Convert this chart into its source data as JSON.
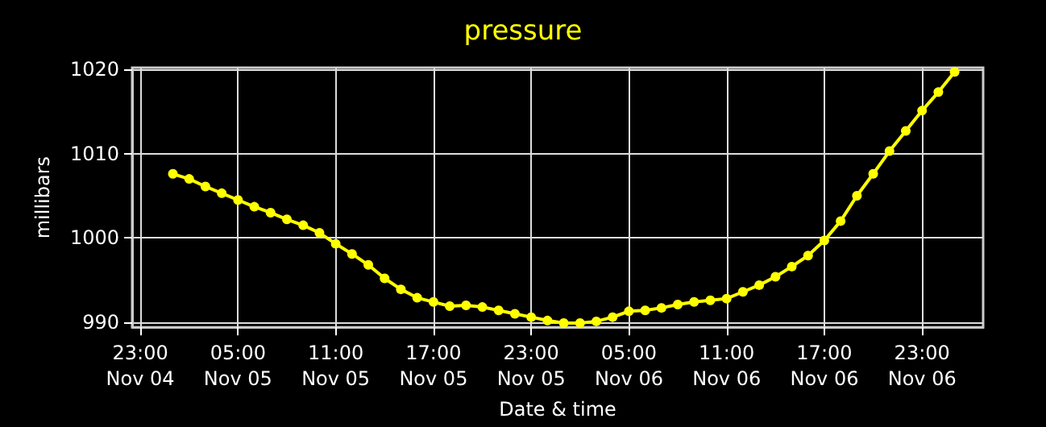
{
  "chart_data": {
    "type": "line",
    "title": "pressure",
    "xlabel": "Date & time",
    "ylabel": "millibars",
    "x": [
      "--11-05T01:00",
      "--11-05T02:00",
      "--11-05T03:00",
      "--11-05T04:00",
      "--11-05T05:00",
      "--11-05T06:00",
      "--11-05T07:00",
      "--11-05T08:00",
      "--11-05T09:00",
      "--11-05T10:00",
      "--11-05T11:00",
      "--11-05T12:00",
      "--11-05T13:00",
      "--11-05T14:00",
      "--11-05T15:00",
      "--11-05T16:00",
      "--11-05T17:00",
      "--11-05T18:00",
      "--11-05T19:00",
      "--11-05T20:00",
      "--11-05T21:00",
      "--11-05T22:00",
      "--11-05T23:00",
      "--11-06T00:00",
      "--11-06T01:00",
      "--11-06T02:00",
      "--11-06T03:00",
      "--11-06T04:00",
      "--11-06T05:00",
      "--11-06T06:00",
      "--11-06T07:00",
      "--11-06T08:00",
      "--11-06T09:00",
      "--11-06T10:00",
      "--11-06T11:00",
      "--11-06T12:00",
      "--11-06T13:00",
      "--11-06T14:00",
      "--11-06T15:00",
      "--11-06T16:00",
      "--11-06T17:00",
      "--11-06T18:00",
      "--11-06T19:00",
      "--11-06T20:00",
      "--11-06T21:00",
      "--11-06T22:00",
      "--11-06T23:00",
      "--11-07T00:00",
      "--11-07T01:00"
    ],
    "series": [
      {
        "color": "#ffff00",
        "values": [
          1007.6,
          1007.0,
          1006.1,
          1005.3,
          1004.5,
          1003.7,
          1003.0,
          1002.2,
          1001.5,
          1000.6,
          999.3,
          998.1,
          996.8,
          995.2,
          993.9,
          992.9,
          992.4,
          991.9,
          992.0,
          991.8,
          991.4,
          991.0,
          990.6,
          990.2,
          989.9,
          989.9,
          990.1,
          990.6,
          991.3,
          991.4,
          991.7,
          992.1,
          992.4,
          992.6,
          992.8,
          993.6,
          994.4,
          995.4,
          996.6,
          997.9,
          999.7,
          1002.0,
          1005.0,
          1007.6,
          1010.3,
          1012.7,
          1015.1,
          1017.3,
          1019.7
        ]
      }
    ],
    "xlim": [
      "--11-04T22:30",
      "--11-07T02:45"
    ],
    "xticks": [
      {
        "value": "--11-04T23:00",
        "label": "23:00\nNov 04"
      },
      {
        "value": "--11-05T05:00",
        "label": "05:00\nNov 05"
      },
      {
        "value": "--11-05T11:00",
        "label": "11:00\nNov 05"
      },
      {
        "value": "--11-05T17:00",
        "label": "17:00\nNov 05"
      },
      {
        "value": "--11-05T23:00",
        "label": "23:00\nNov 05"
      },
      {
        "value": "--11-06T05:00",
        "label": "05:00\nNov 06"
      },
      {
        "value": "--11-06T11:00",
        "label": "11:00\nNov 06"
      },
      {
        "value": "--11-06T17:00",
        "label": "17:00\nNov 06"
      },
      {
        "value": "--11-06T23:00",
        "label": "23:00\nNov 06"
      }
    ],
    "ylim": [
      989.4,
      1020.2
    ],
    "yticks": [
      990,
      1000,
      1010,
      1020
    ],
    "grid": true,
    "marker": "circle",
    "line_style": "solid"
  }
}
